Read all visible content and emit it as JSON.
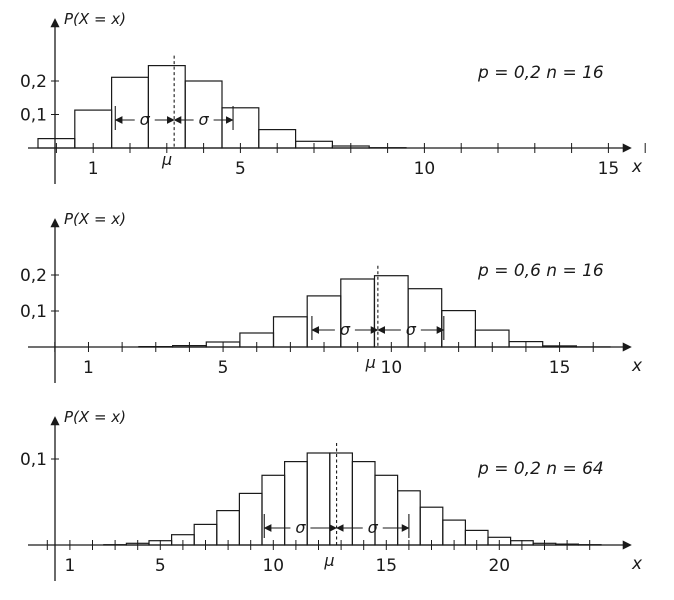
{
  "colors": {
    "line": "#1a1a1a",
    "background": "#ffffff",
    "bar_fill": "none"
  },
  "chart_data": [
    {
      "type": "bar",
      "ylabel": "P(X = x)",
      "xlabel": "x",
      "params_label": "p = 0,2    n = 16",
      "mu_label": "μ",
      "sigma_label": "σ",
      "x": [
        0,
        1,
        2,
        3,
        4,
        5,
        6,
        7,
        8,
        9,
        10,
        11,
        12,
        13,
        14,
        15,
        16
      ],
      "values": [
        0.028,
        0.113,
        0.211,
        0.246,
        0.2,
        0.12,
        0.055,
        0.02,
        0.006,
        0.001,
        0,
        0,
        0,
        0,
        0,
        0,
        0
      ],
      "mean": 3.2,
      "sd": 1.6,
      "xlim": [
        -0.5,
        16.5
      ],
      "ylim": [
        0,
        0.3
      ],
      "xticks": [
        1,
        5,
        10,
        15
      ],
      "yticks": [
        0.1,
        0.2
      ],
      "xtick_labels": [
        "1",
        "5",
        "10",
        "15"
      ],
      "ytick_labels": [
        "0,1",
        "0,2"
      ]
    },
    {
      "type": "bar",
      "ylabel": "P(X = x)",
      "xlabel": "x",
      "params_label": "p = 0,6    n = 16",
      "mu_label": "μ",
      "sigma_label": "σ",
      "x": [
        0,
        1,
        2,
        3,
        4,
        5,
        6,
        7,
        8,
        9,
        10,
        11,
        12,
        13,
        14,
        15,
        16
      ],
      "values": [
        0,
        0,
        0,
        0.001,
        0.004,
        0.014,
        0.039,
        0.084,
        0.142,
        0.189,
        0.198,
        0.162,
        0.101,
        0.047,
        0.015,
        0.003,
        0.0003
      ],
      "mean": 9.6,
      "sd": 1.96,
      "xlim": [
        -0.5,
        16.5
      ],
      "ylim": [
        0,
        0.3
      ],
      "xticks": [
        1,
        5,
        10,
        15
      ],
      "yticks": [
        0.1,
        0.2
      ],
      "xtick_labels": [
        "1",
        "5",
        "10",
        "15"
      ],
      "ytick_labels": [
        "0,1",
        "0,2"
      ]
    },
    {
      "type": "bar",
      "ylabel": "P(X = x)",
      "xlabel": "x",
      "params_label": "p = 0,2    n = 64",
      "mu_label": "μ",
      "sigma_label": "σ",
      "x": [
        0,
        1,
        2,
        3,
        4,
        5,
        6,
        7,
        8,
        9,
        10,
        11,
        12,
        13,
        14,
        15,
        16,
        17,
        18,
        19,
        20,
        21,
        22,
        23,
        24
      ],
      "values": [
        0,
        0,
        0,
        0.0004,
        0.002,
        0.005,
        0.012,
        0.024,
        0.04,
        0.06,
        0.081,
        0.097,
        0.107,
        0.107,
        0.097,
        0.081,
        0.063,
        0.044,
        0.029,
        0.017,
        0.009,
        0.005,
        0.002,
        0.001,
        0.0003
      ],
      "mean": 12.8,
      "sd": 3.2,
      "xlim": [
        -0.5,
        24.5
      ],
      "ylim": [
        0,
        0.15
      ],
      "xticks": [
        1,
        5,
        10,
        15,
        20
      ],
      "yticks": [
        0.1
      ],
      "xtick_labels": [
        "1",
        "5",
        "10",
        "15",
        "20"
      ],
      "ytick_labels": [
        "0,1"
      ]
    }
  ]
}
